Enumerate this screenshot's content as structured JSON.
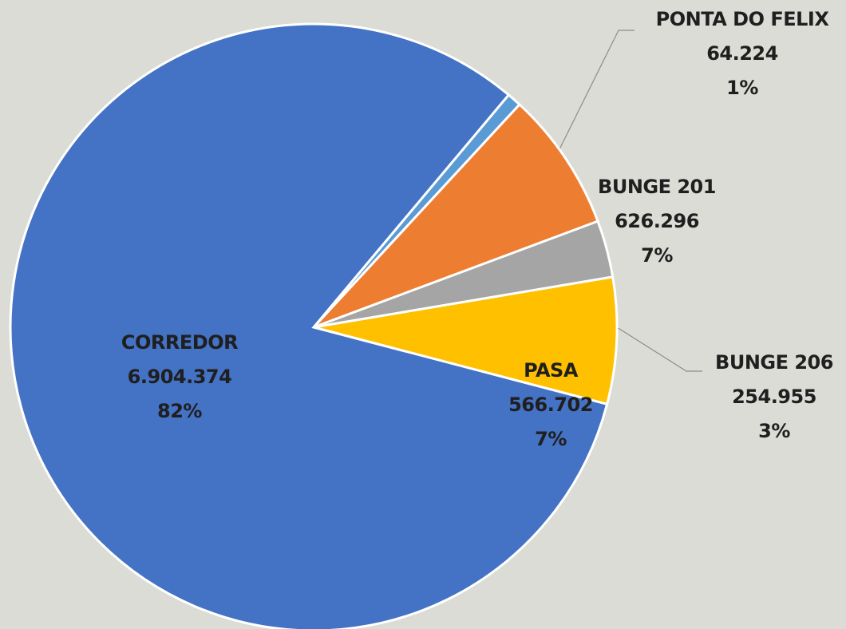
{
  "chart_data": {
    "type": "pie",
    "categories": [
      "PONTA DO FELIX",
      "BUNGE 201",
      "BUNGE 206",
      "PASA",
      "CORREDOR"
    ],
    "values": [
      64224,
      626296,
      254955,
      566702,
      6904374
    ],
    "value_labels": [
      "64.224",
      "626.296",
      "254.955",
      "566.702",
      "6.904.374"
    ],
    "percent_labels": [
      "1%",
      "7%",
      "3%",
      "7%",
      "82%"
    ],
    "colors": [
      "#5b9bd5",
      "#ed7d31",
      "#a5a5a5",
      "#ffc000",
      "#4472c4"
    ]
  }
}
